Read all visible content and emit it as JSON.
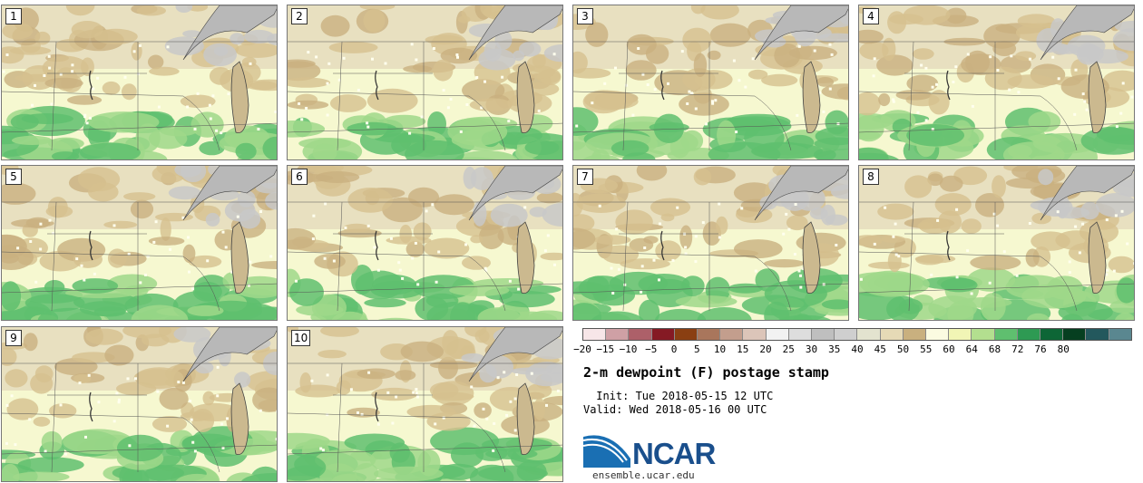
{
  "stamps": [
    {
      "label": "1"
    },
    {
      "label": "2"
    },
    {
      "label": "3"
    },
    {
      "label": "4"
    },
    {
      "label": "5"
    },
    {
      "label": "6"
    },
    {
      "label": "7"
    },
    {
      "label": "8"
    },
    {
      "label": "9"
    },
    {
      "label": "10"
    }
  ],
  "colorbar": {
    "colors": [
      "#f7e6e8",
      "#cfa0a5",
      "#ad6069",
      "#851a24",
      "#8a3f12",
      "#a9765c",
      "#c39e8d",
      "#dcc5b9",
      "#f2f2f2",
      "#dddddd",
      "#bfbfbf",
      "#cfcfcf",
      "#e3e3cf",
      "#e6dab6",
      "#c9b07f",
      "#fbfbe1",
      "#f1f5b5",
      "#b3df8f",
      "#5fbf6f",
      "#2e9a53",
      "#0d6636",
      "#063f20",
      "#23585d",
      "#5a8790"
    ],
    "labels": [
      "−20",
      "−15",
      "−10",
      "−5",
      "0",
      "5",
      "10",
      "15",
      "20",
      "25",
      "30",
      "35",
      "40",
      "45",
      "50",
      "55",
      "60",
      "64",
      "68",
      "72",
      "76",
      "80"
    ],
    "label_index": [
      0,
      1,
      2,
      3,
      4,
      5,
      6,
      7,
      8,
      9,
      10,
      11,
      12,
      13,
      14,
      15,
      16,
      17,
      18,
      19,
      20,
      21
    ]
  },
  "title": "2-m dewpoint (F) postage stamp",
  "init": " Init: Tue 2018-05-15 12 UTC",
  "valid": "Valid: Wed 2018-05-16 00 UTC",
  "logo": {
    "text": "NCAR",
    "url": "ensemble.ucar.edu"
  }
}
